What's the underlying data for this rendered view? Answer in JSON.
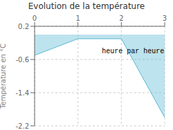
{
  "chart_data": {
    "type": "area",
    "title": "Evolution de la température",
    "ylabel": "Température en °C",
    "x": [
      0,
      1,
      2,
      3
    ],
    "values": [
      -0.5,
      -0.1,
      -0.1,
      -2.0
    ],
    "xlim": [
      0,
      3
    ],
    "ylim": [
      -2.2,
      0.2
    ],
    "xticks": [
      0,
      1,
      2,
      3
    ],
    "yticks": [
      0.2,
      -0.6,
      -1.4,
      -2.2
    ],
    "annotations": [
      {
        "text": "heure par heure",
        "x": 1.55,
        "y": -0.35
      }
    ],
    "color": "#5bb8d4",
    "grid": true
  }
}
